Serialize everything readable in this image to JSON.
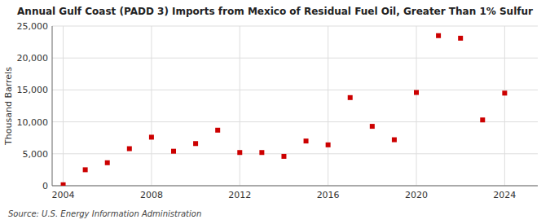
{
  "chart_data": {
    "type": "scatter",
    "title": "Annual Gulf Coast (PADD 3) Imports from Mexico of Residual Fuel Oil, Greater Than 1% Sulfur",
    "y_label": "Thousand Barrels",
    "source": "Source: U.S. Energy Information Administration",
    "x": [
      2004,
      2005,
      2006,
      2007,
      2008,
      2009,
      2010,
      2011,
      2012,
      2013,
      2014,
      2015,
      2016,
      2017,
      2018,
      2019,
      2020,
      2021,
      2022,
      2023,
      2024
    ],
    "values": [
      150,
      2500,
      3600,
      5800,
      7600,
      5400,
      6600,
      8700,
      5200,
      5200,
      4600,
      7000,
      6400,
      13800,
      9300,
      7200,
      14600,
      23500,
      23100,
      10300,
      14500
    ],
    "color": "#cc0000",
    "marker": "square",
    "xlim": [
      2003.5,
      2025.5
    ],
    "xticks": [
      2004,
      2008,
      2012,
      2016,
      2020,
      2024
    ],
    "ylim": [
      0,
      25000
    ],
    "yticks": [
      0,
      {
        "value": 5000,
        "label": "5,000"
      },
      {
        "value": 10000,
        "label": "10,000"
      },
      {
        "value": 15000,
        "label": "15,000"
      },
      {
        "value": 20000,
        "label": "20,000"
      },
      {
        "value": 25000,
        "label": "25,000"
      }
    ],
    "grid": true
  }
}
